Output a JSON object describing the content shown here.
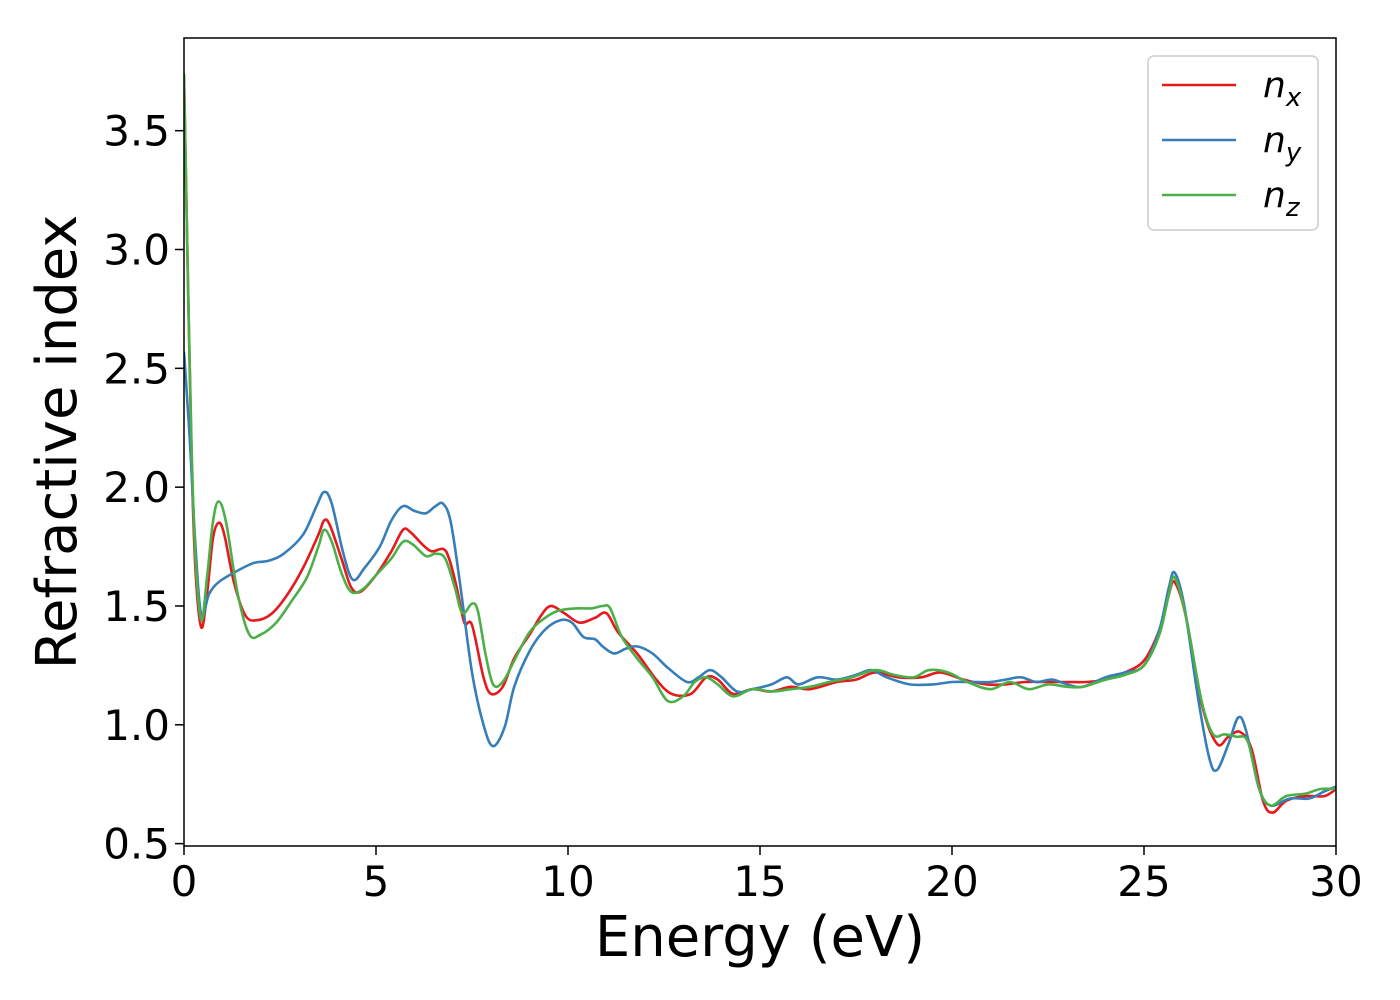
{
  "chart_data": {
    "type": "line",
    "xlabel": "Energy (eV)",
    "ylabel": "Refractive index",
    "xlim": [
      0,
      30
    ],
    "ylim": [
      0.49,
      3.89
    ],
    "xticks": [
      0,
      5,
      10,
      15,
      20,
      25,
      30
    ],
    "yticks": [
      0.5,
      1.0,
      1.5,
      2.0,
      2.5,
      3.0,
      3.5
    ],
    "xtick_labels": [
      "0",
      "5",
      "10",
      "15",
      "20",
      "25",
      "30"
    ],
    "ytick_labels": [
      "0.5",
      "1.0",
      "1.5",
      "2.0",
      "2.5",
      "3.0",
      "3.5"
    ],
    "grid": false,
    "legend_position": "top-right",
    "series": [
      {
        "name": "n_x",
        "base": "n",
        "sub": "x",
        "color": "#e41a1c",
        "points": [
          [
            0,
            3.73
          ],
          [
            0.1,
            2.9
          ],
          [
            0.2,
            2.1
          ],
          [
            0.3,
            1.65
          ],
          [
            0.45,
            1.41
          ],
          [
            0.6,
            1.55
          ],
          [
            0.75,
            1.78
          ],
          [
            0.9,
            1.85
          ],
          [
            1.05,
            1.8
          ],
          [
            1.3,
            1.6
          ],
          [
            1.6,
            1.46
          ],
          [
            1.9,
            1.44
          ],
          [
            2.3,
            1.47
          ],
          [
            2.7,
            1.55
          ],
          [
            3.1,
            1.66
          ],
          [
            3.5,
            1.8
          ],
          [
            3.65,
            1.86
          ],
          [
            3.8,
            1.84
          ],
          [
            4.1,
            1.7
          ],
          [
            4.35,
            1.58
          ],
          [
            4.6,
            1.56
          ],
          [
            5.0,
            1.63
          ],
          [
            5.4,
            1.73
          ],
          [
            5.7,
            1.82
          ],
          [
            5.9,
            1.81
          ],
          [
            6.2,
            1.76
          ],
          [
            6.45,
            1.73
          ],
          [
            6.75,
            1.74
          ],
          [
            6.9,
            1.7
          ],
          [
            7.1,
            1.58
          ],
          [
            7.3,
            1.43
          ],
          [
            7.5,
            1.42
          ],
          [
            7.8,
            1.2
          ],
          [
            8.0,
            1.13
          ],
          [
            8.3,
            1.16
          ],
          [
            8.6,
            1.28
          ],
          [
            9.0,
            1.38
          ],
          [
            9.3,
            1.46
          ],
          [
            9.55,
            1.5
          ],
          [
            9.9,
            1.47
          ],
          [
            10.3,
            1.43
          ],
          [
            10.7,
            1.45
          ],
          [
            11.0,
            1.47
          ],
          [
            11.3,
            1.39
          ],
          [
            11.8,
            1.3
          ],
          [
            12.3,
            1.19
          ],
          [
            12.7,
            1.13
          ],
          [
            13.2,
            1.13
          ],
          [
            13.6,
            1.2
          ],
          [
            13.9,
            1.19
          ],
          [
            14.3,
            1.13
          ],
          [
            14.8,
            1.15
          ],
          [
            15.3,
            1.14
          ],
          [
            15.8,
            1.16
          ],
          [
            16.3,
            1.15
          ],
          [
            17.0,
            1.18
          ],
          [
            17.5,
            1.19
          ],
          [
            18.0,
            1.22
          ],
          [
            18.6,
            1.2
          ],
          [
            19.2,
            1.2
          ],
          [
            19.7,
            1.22
          ],
          [
            20.3,
            1.19
          ],
          [
            20.9,
            1.17
          ],
          [
            21.4,
            1.17
          ],
          [
            21.9,
            1.18
          ],
          [
            22.5,
            1.18
          ],
          [
            23.0,
            1.18
          ],
          [
            23.5,
            1.18
          ],
          [
            24.0,
            1.19
          ],
          [
            24.5,
            1.22
          ],
          [
            25.0,
            1.27
          ],
          [
            25.4,
            1.4
          ],
          [
            25.65,
            1.55
          ],
          [
            25.8,
            1.6
          ],
          [
            26.1,
            1.45
          ],
          [
            26.5,
            1.09
          ],
          [
            26.9,
            0.92
          ],
          [
            27.2,
            0.95
          ],
          [
            27.5,
            0.97
          ],
          [
            27.8,
            0.9
          ],
          [
            28.1,
            0.68
          ],
          [
            28.35,
            0.63
          ],
          [
            28.7,
            0.68
          ],
          [
            29.2,
            0.7
          ],
          [
            29.7,
            0.7
          ],
          [
            30.0,
            0.73
          ]
        ]
      },
      {
        "name": "n_y",
        "base": "n",
        "sub": "y",
        "color": "#377eb8",
        "points": [
          [
            0,
            2.57
          ],
          [
            0.15,
            2.2
          ],
          [
            0.3,
            1.75
          ],
          [
            0.45,
            1.46
          ],
          [
            0.65,
            1.55
          ],
          [
            0.9,
            1.6
          ],
          [
            1.3,
            1.64
          ],
          [
            1.8,
            1.68
          ],
          [
            2.2,
            1.69
          ],
          [
            2.6,
            1.72
          ],
          [
            3.1,
            1.8
          ],
          [
            3.45,
            1.92
          ],
          [
            3.65,
            1.98
          ],
          [
            3.85,
            1.93
          ],
          [
            4.15,
            1.72
          ],
          [
            4.4,
            1.61
          ],
          [
            4.7,
            1.66
          ],
          [
            5.1,
            1.75
          ],
          [
            5.4,
            1.86
          ],
          [
            5.7,
            1.92
          ],
          [
            6.0,
            1.9
          ],
          [
            6.3,
            1.89
          ],
          [
            6.55,
            1.92
          ],
          [
            6.75,
            1.93
          ],
          [
            6.95,
            1.85
          ],
          [
            7.2,
            1.58
          ],
          [
            7.5,
            1.22
          ],
          [
            7.8,
            1.0
          ],
          [
            8.05,
            0.91
          ],
          [
            8.35,
            0.99
          ],
          [
            8.6,
            1.16
          ],
          [
            9.0,
            1.31
          ],
          [
            9.4,
            1.4
          ],
          [
            9.8,
            1.44
          ],
          [
            10.1,
            1.43
          ],
          [
            10.4,
            1.37
          ],
          [
            10.7,
            1.36
          ],
          [
            10.9,
            1.33
          ],
          [
            11.2,
            1.3
          ],
          [
            11.5,
            1.32
          ],
          [
            11.8,
            1.33
          ],
          [
            12.2,
            1.3
          ],
          [
            12.6,
            1.24
          ],
          [
            13.1,
            1.18
          ],
          [
            13.4,
            1.2
          ],
          [
            13.7,
            1.23
          ],
          [
            14.0,
            1.2
          ],
          [
            14.4,
            1.14
          ],
          [
            14.8,
            1.15
          ],
          [
            15.3,
            1.17
          ],
          [
            15.7,
            1.2
          ],
          [
            16.0,
            1.17
          ],
          [
            16.5,
            1.2
          ],
          [
            17.0,
            1.19
          ],
          [
            17.5,
            1.21
          ],
          [
            17.9,
            1.23
          ],
          [
            18.3,
            1.2
          ],
          [
            18.9,
            1.17
          ],
          [
            19.5,
            1.17
          ],
          [
            20.0,
            1.18
          ],
          [
            20.5,
            1.18
          ],
          [
            21.0,
            1.18
          ],
          [
            21.4,
            1.19
          ],
          [
            21.8,
            1.2
          ],
          [
            22.2,
            1.18
          ],
          [
            22.6,
            1.19
          ],
          [
            23.0,
            1.17
          ],
          [
            23.4,
            1.16
          ],
          [
            24.0,
            1.2
          ],
          [
            24.5,
            1.22
          ],
          [
            25.0,
            1.25
          ],
          [
            25.4,
            1.4
          ],
          [
            25.65,
            1.58
          ],
          [
            25.8,
            1.64
          ],
          [
            26.05,
            1.5
          ],
          [
            26.4,
            1.12
          ],
          [
            26.7,
            0.86
          ],
          [
            26.9,
            0.81
          ],
          [
            27.2,
            0.92
          ],
          [
            27.45,
            1.03
          ],
          [
            27.65,
            0.98
          ],
          [
            28.0,
            0.73
          ],
          [
            28.3,
            0.66
          ],
          [
            28.8,
            0.69
          ],
          [
            29.3,
            0.69
          ],
          [
            29.7,
            0.72
          ],
          [
            30.0,
            0.74
          ]
        ]
      },
      {
        "name": "n_z",
        "base": "n",
        "sub": "z",
        "color": "#4daf4a",
        "points": [
          [
            0,
            3.74
          ],
          [
            0.1,
            2.9
          ],
          [
            0.2,
            2.15
          ],
          [
            0.3,
            1.7
          ],
          [
            0.45,
            1.44
          ],
          [
            0.6,
            1.62
          ],
          [
            0.75,
            1.85
          ],
          [
            0.9,
            1.94
          ],
          [
            1.1,
            1.85
          ],
          [
            1.4,
            1.55
          ],
          [
            1.7,
            1.38
          ],
          [
            2.0,
            1.38
          ],
          [
            2.4,
            1.43
          ],
          [
            2.8,
            1.52
          ],
          [
            3.2,
            1.62
          ],
          [
            3.5,
            1.75
          ],
          [
            3.65,
            1.82
          ],
          [
            3.85,
            1.77
          ],
          [
            4.1,
            1.64
          ],
          [
            4.35,
            1.56
          ],
          [
            4.65,
            1.57
          ],
          [
            5.0,
            1.63
          ],
          [
            5.4,
            1.7
          ],
          [
            5.7,
            1.77
          ],
          [
            5.95,
            1.76
          ],
          [
            6.3,
            1.71
          ],
          [
            6.55,
            1.72
          ],
          [
            6.8,
            1.7
          ],
          [
            7.05,
            1.58
          ],
          [
            7.25,
            1.47
          ],
          [
            7.5,
            1.51
          ],
          [
            7.65,
            1.48
          ],
          [
            7.85,
            1.3
          ],
          [
            8.05,
            1.17
          ],
          [
            8.3,
            1.18
          ],
          [
            8.6,
            1.27
          ],
          [
            9.0,
            1.39
          ],
          [
            9.4,
            1.45
          ],
          [
            9.75,
            1.48
          ],
          [
            10.2,
            1.49
          ],
          [
            10.6,
            1.49
          ],
          [
            10.9,
            1.5
          ],
          [
            11.1,
            1.49
          ],
          [
            11.4,
            1.37
          ],
          [
            11.8,
            1.28
          ],
          [
            12.2,
            1.2
          ],
          [
            12.6,
            1.1
          ],
          [
            13.0,
            1.12
          ],
          [
            13.3,
            1.18
          ],
          [
            13.6,
            1.2
          ],
          [
            13.9,
            1.17
          ],
          [
            14.3,
            1.12
          ],
          [
            14.8,
            1.15
          ],
          [
            15.3,
            1.14
          ],
          [
            15.8,
            1.15
          ],
          [
            16.3,
            1.16
          ],
          [
            16.8,
            1.18
          ],
          [
            17.4,
            1.2
          ],
          [
            18.0,
            1.23
          ],
          [
            18.5,
            1.21
          ],
          [
            19.0,
            1.2
          ],
          [
            19.4,
            1.23
          ],
          [
            19.9,
            1.22
          ],
          [
            20.4,
            1.18
          ],
          [
            21.0,
            1.15
          ],
          [
            21.5,
            1.18
          ],
          [
            22.0,
            1.15
          ],
          [
            22.5,
            1.17
          ],
          [
            23.0,
            1.16
          ],
          [
            23.4,
            1.16
          ],
          [
            24.0,
            1.19
          ],
          [
            24.5,
            1.21
          ],
          [
            25.0,
            1.25
          ],
          [
            25.4,
            1.38
          ],
          [
            25.65,
            1.55
          ],
          [
            25.8,
            1.62
          ],
          [
            26.1,
            1.45
          ],
          [
            26.5,
            1.1
          ],
          [
            26.8,
            0.96
          ],
          [
            27.1,
            0.96
          ],
          [
            27.4,
            0.95
          ],
          [
            27.7,
            0.93
          ],
          [
            28.0,
            0.73
          ],
          [
            28.3,
            0.66
          ],
          [
            28.7,
            0.7
          ],
          [
            29.2,
            0.71
          ],
          [
            29.6,
            0.73
          ],
          [
            30.0,
            0.73
          ]
        ]
      }
    ]
  }
}
